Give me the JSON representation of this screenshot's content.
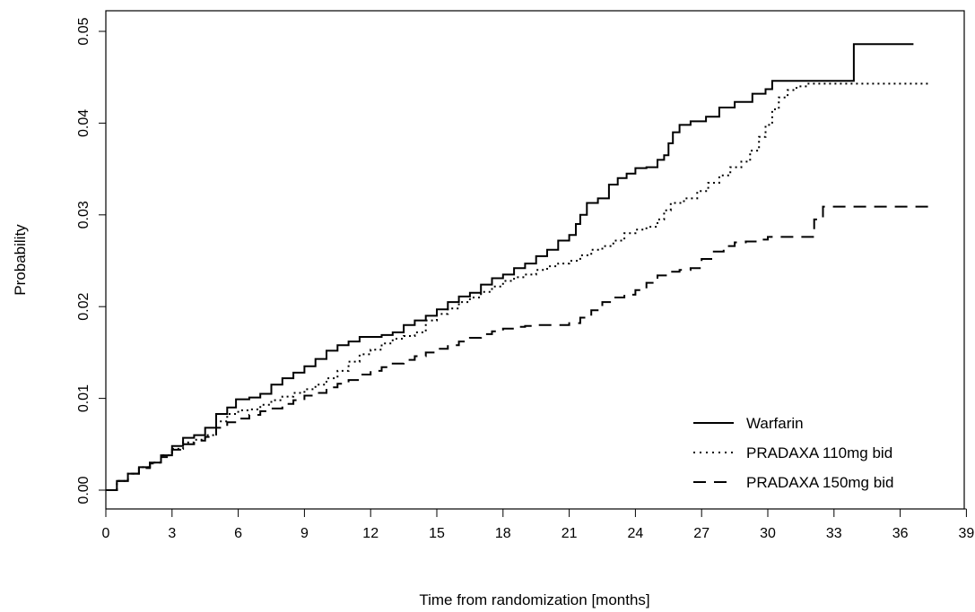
{
  "chart_data": {
    "type": "line",
    "title": "",
    "xlabel": "Time from randomization [months]",
    "ylabel": "Probability",
    "xlim": [
      0,
      39
    ],
    "ylim": [
      0,
      0.05
    ],
    "xticks": [
      "0",
      "3",
      "6",
      "9",
      "12",
      "15",
      "18",
      "21",
      "24",
      "27",
      "30",
      "33",
      "36",
      "39"
    ],
    "yticks": [
      "0.00",
      "0.01",
      "0.02",
      "0.03",
      "0.04",
      "0.05"
    ],
    "grid": false,
    "legend_position": "bottom-right",
    "series": [
      {
        "name": "Warfarin",
        "style": "solid",
        "points": [
          [
            0,
            0
          ],
          [
            0.5,
            0.001
          ],
          [
            1,
            0.0018
          ],
          [
            1.5,
            0.0025
          ],
          [
            2,
            0.003
          ],
          [
            2.5,
            0.0038
          ],
          [
            3,
            0.0048
          ],
          [
            3.5,
            0.0057
          ],
          [
            4,
            0.006
          ],
          [
            4.5,
            0.0068
          ],
          [
            5,
            0.0083
          ],
          [
            5.5,
            0.009
          ],
          [
            5.9,
            0.0099
          ],
          [
            6.5,
            0.0101
          ],
          [
            7,
            0.0105
          ],
          [
            7.5,
            0.0115
          ],
          [
            8,
            0.0122
          ],
          [
            8.5,
            0.0128
          ],
          [
            9,
            0.0135
          ],
          [
            9.5,
            0.0143
          ],
          [
            10,
            0.0152
          ],
          [
            10.5,
            0.0158
          ],
          [
            11,
            0.0162
          ],
          [
            11.5,
            0.0167
          ],
          [
            12,
            0.0167
          ],
          [
            12.5,
            0.0169
          ],
          [
            13,
            0.0172
          ],
          [
            13.5,
            0.018
          ],
          [
            14,
            0.0185
          ],
          [
            14.5,
            0.019
          ],
          [
            15,
            0.0197
          ],
          [
            15.5,
            0.0205
          ],
          [
            16,
            0.0211
          ],
          [
            16.5,
            0.0215
          ],
          [
            17,
            0.0224
          ],
          [
            17.5,
            0.0231
          ],
          [
            18,
            0.0235
          ],
          [
            18.5,
            0.0242
          ],
          [
            19,
            0.0247
          ],
          [
            19.5,
            0.0255
          ],
          [
            20,
            0.0262
          ],
          [
            20.5,
            0.0272
          ],
          [
            21,
            0.0278
          ],
          [
            21.3,
            0.029
          ],
          [
            21.5,
            0.03
          ],
          [
            21.8,
            0.0313
          ],
          [
            22.3,
            0.0318
          ],
          [
            22.8,
            0.0333
          ],
          [
            23.2,
            0.034
          ],
          [
            23.6,
            0.0345
          ],
          [
            24,
            0.0351
          ],
          [
            24.5,
            0.0352
          ],
          [
            25,
            0.036
          ],
          [
            25.3,
            0.0365
          ],
          [
            25.5,
            0.0378
          ],
          [
            25.7,
            0.039
          ],
          [
            26,
            0.0398
          ],
          [
            26.5,
            0.0402
          ],
          [
            27.2,
            0.0407
          ],
          [
            27.8,
            0.0417
          ],
          [
            28.5,
            0.0423
          ],
          [
            29.3,
            0.0432
          ],
          [
            29.9,
            0.0437
          ],
          [
            30.2,
            0.0446
          ],
          [
            31,
            0.0446
          ],
          [
            32,
            0.0446
          ],
          [
            33.9,
            0.0447
          ],
          [
            33.9,
            0.0486
          ],
          [
            36.6,
            0.0486
          ]
        ]
      },
      {
        "name": "PRADAXA 110mg bid",
        "style": "dotted",
        "points": [
          [
            0,
            0
          ],
          [
            0.5,
            0.001
          ],
          [
            1,
            0.0018
          ],
          [
            1.5,
            0.0025
          ],
          [
            2,
            0.003
          ],
          [
            2.5,
            0.0038
          ],
          [
            3,
            0.0045
          ],
          [
            3.5,
            0.0052
          ],
          [
            4,
            0.0055
          ],
          [
            4.5,
            0.006
          ],
          [
            5,
            0.0075
          ],
          [
            5.5,
            0.0083
          ],
          [
            6,
            0.0087
          ],
          [
            6.5,
            0.0088
          ],
          [
            7,
            0.0093
          ],
          [
            7.5,
            0.0098
          ],
          [
            8,
            0.0102
          ],
          [
            8.5,
            0.0106
          ],
          [
            9,
            0.011
          ],
          [
            9.5,
            0.0115
          ],
          [
            10,
            0.0122
          ],
          [
            10.5,
            0.013
          ],
          [
            11,
            0.014
          ],
          [
            11.5,
            0.0148
          ],
          [
            12,
            0.0153
          ],
          [
            12.5,
            0.016
          ],
          [
            13,
            0.0165
          ],
          [
            13.5,
            0.0168
          ],
          [
            14,
            0.0172
          ],
          [
            14.5,
            0.0185
          ],
          [
            15,
            0.0192
          ],
          [
            15.5,
            0.0198
          ],
          [
            16,
            0.0205
          ],
          [
            16.5,
            0.021
          ],
          [
            17,
            0.0216
          ],
          [
            17.5,
            0.0222
          ],
          [
            18,
            0.0228
          ],
          [
            18.5,
            0.0232
          ],
          [
            19,
            0.0235
          ],
          [
            19.5,
            0.024
          ],
          [
            20,
            0.0244
          ],
          [
            20.5,
            0.0247
          ],
          [
            21,
            0.025
          ],
          [
            21.5,
            0.0256
          ],
          [
            22,
            0.0262
          ],
          [
            22.5,
            0.0266
          ],
          [
            23,
            0.0272
          ],
          [
            23.5,
            0.028
          ],
          [
            24,
            0.0284
          ],
          [
            24.5,
            0.0287
          ],
          [
            25,
            0.0295
          ],
          [
            25.3,
            0.0305
          ],
          [
            25.6,
            0.0313
          ],
          [
            26.2,
            0.0318
          ],
          [
            26.8,
            0.0326
          ],
          [
            27.3,
            0.0335
          ],
          [
            27.8,
            0.0343
          ],
          [
            28.3,
            0.0352
          ],
          [
            28.8,
            0.0358
          ],
          [
            29.2,
            0.037
          ],
          [
            29.6,
            0.0385
          ],
          [
            29.9,
            0.0398
          ],
          [
            30.2,
            0.0415
          ],
          [
            30.5,
            0.0428
          ],
          [
            30.9,
            0.0436
          ],
          [
            31.3,
            0.044
          ],
          [
            31.8,
            0.0443
          ],
          [
            33,
            0.0443
          ],
          [
            37.3,
            0.0443
          ]
        ]
      },
      {
        "name": "PRADAXA 150mg bid",
        "style": "dashed",
        "points": [
          [
            0,
            0
          ],
          [
            0.5,
            0.001
          ],
          [
            1,
            0.0018
          ],
          [
            1.5,
            0.0024
          ],
          [
            2,
            0.0029
          ],
          [
            2.5,
            0.0036
          ],
          [
            3,
            0.0044
          ],
          [
            3.5,
            0.005
          ],
          [
            4,
            0.0054
          ],
          [
            4.5,
            0.0058
          ],
          [
            5,
            0.0068
          ],
          [
            5.5,
            0.0074
          ],
          [
            6,
            0.0078
          ],
          [
            6.5,
            0.0082
          ],
          [
            7,
            0.0086
          ],
          [
            7.5,
            0.0089
          ],
          [
            8,
            0.0094
          ],
          [
            8.5,
            0.0098
          ],
          [
            9,
            0.0103
          ],
          [
            9.5,
            0.0106
          ],
          [
            10,
            0.0112
          ],
          [
            10.5,
            0.0116
          ],
          [
            11,
            0.012
          ],
          [
            11.5,
            0.0126
          ],
          [
            12,
            0.013
          ],
          [
            12.5,
            0.0134
          ],
          [
            13,
            0.0138
          ],
          [
            13.5,
            0.0142
          ],
          [
            14,
            0.0146
          ],
          [
            14.5,
            0.015
          ],
          [
            15,
            0.0154
          ],
          [
            15.5,
            0.0158
          ],
          [
            16,
            0.0162
          ],
          [
            16.5,
            0.0166
          ],
          [
            17,
            0.017
          ],
          [
            17.5,
            0.0173
          ],
          [
            18,
            0.0176
          ],
          [
            18.5,
            0.0178
          ],
          [
            19,
            0.0179
          ],
          [
            19.6,
            0.018
          ],
          [
            20.5,
            0.018
          ],
          [
            21,
            0.0182
          ],
          [
            21.5,
            0.0188
          ],
          [
            22,
            0.0196
          ],
          [
            22.5,
            0.0205
          ],
          [
            23,
            0.021
          ],
          [
            23.5,
            0.0213
          ],
          [
            24,
            0.0218
          ],
          [
            24.5,
            0.0226
          ],
          [
            25,
            0.0234
          ],
          [
            25.5,
            0.0238
          ],
          [
            26,
            0.024
          ],
          [
            26.5,
            0.0242
          ],
          [
            27,
            0.0252
          ],
          [
            27.5,
            0.026
          ],
          [
            28,
            0.0266
          ],
          [
            28.5,
            0.027
          ],
          [
            29,
            0.0271
          ],
          [
            29.5,
            0.0273
          ],
          [
            30,
            0.0276
          ],
          [
            31,
            0.0276
          ],
          [
            32.1,
            0.0276
          ],
          [
            32.1,
            0.0295
          ],
          [
            32.5,
            0.0309
          ],
          [
            34,
            0.0309
          ],
          [
            37.3,
            0.0309
          ]
        ]
      }
    ]
  }
}
